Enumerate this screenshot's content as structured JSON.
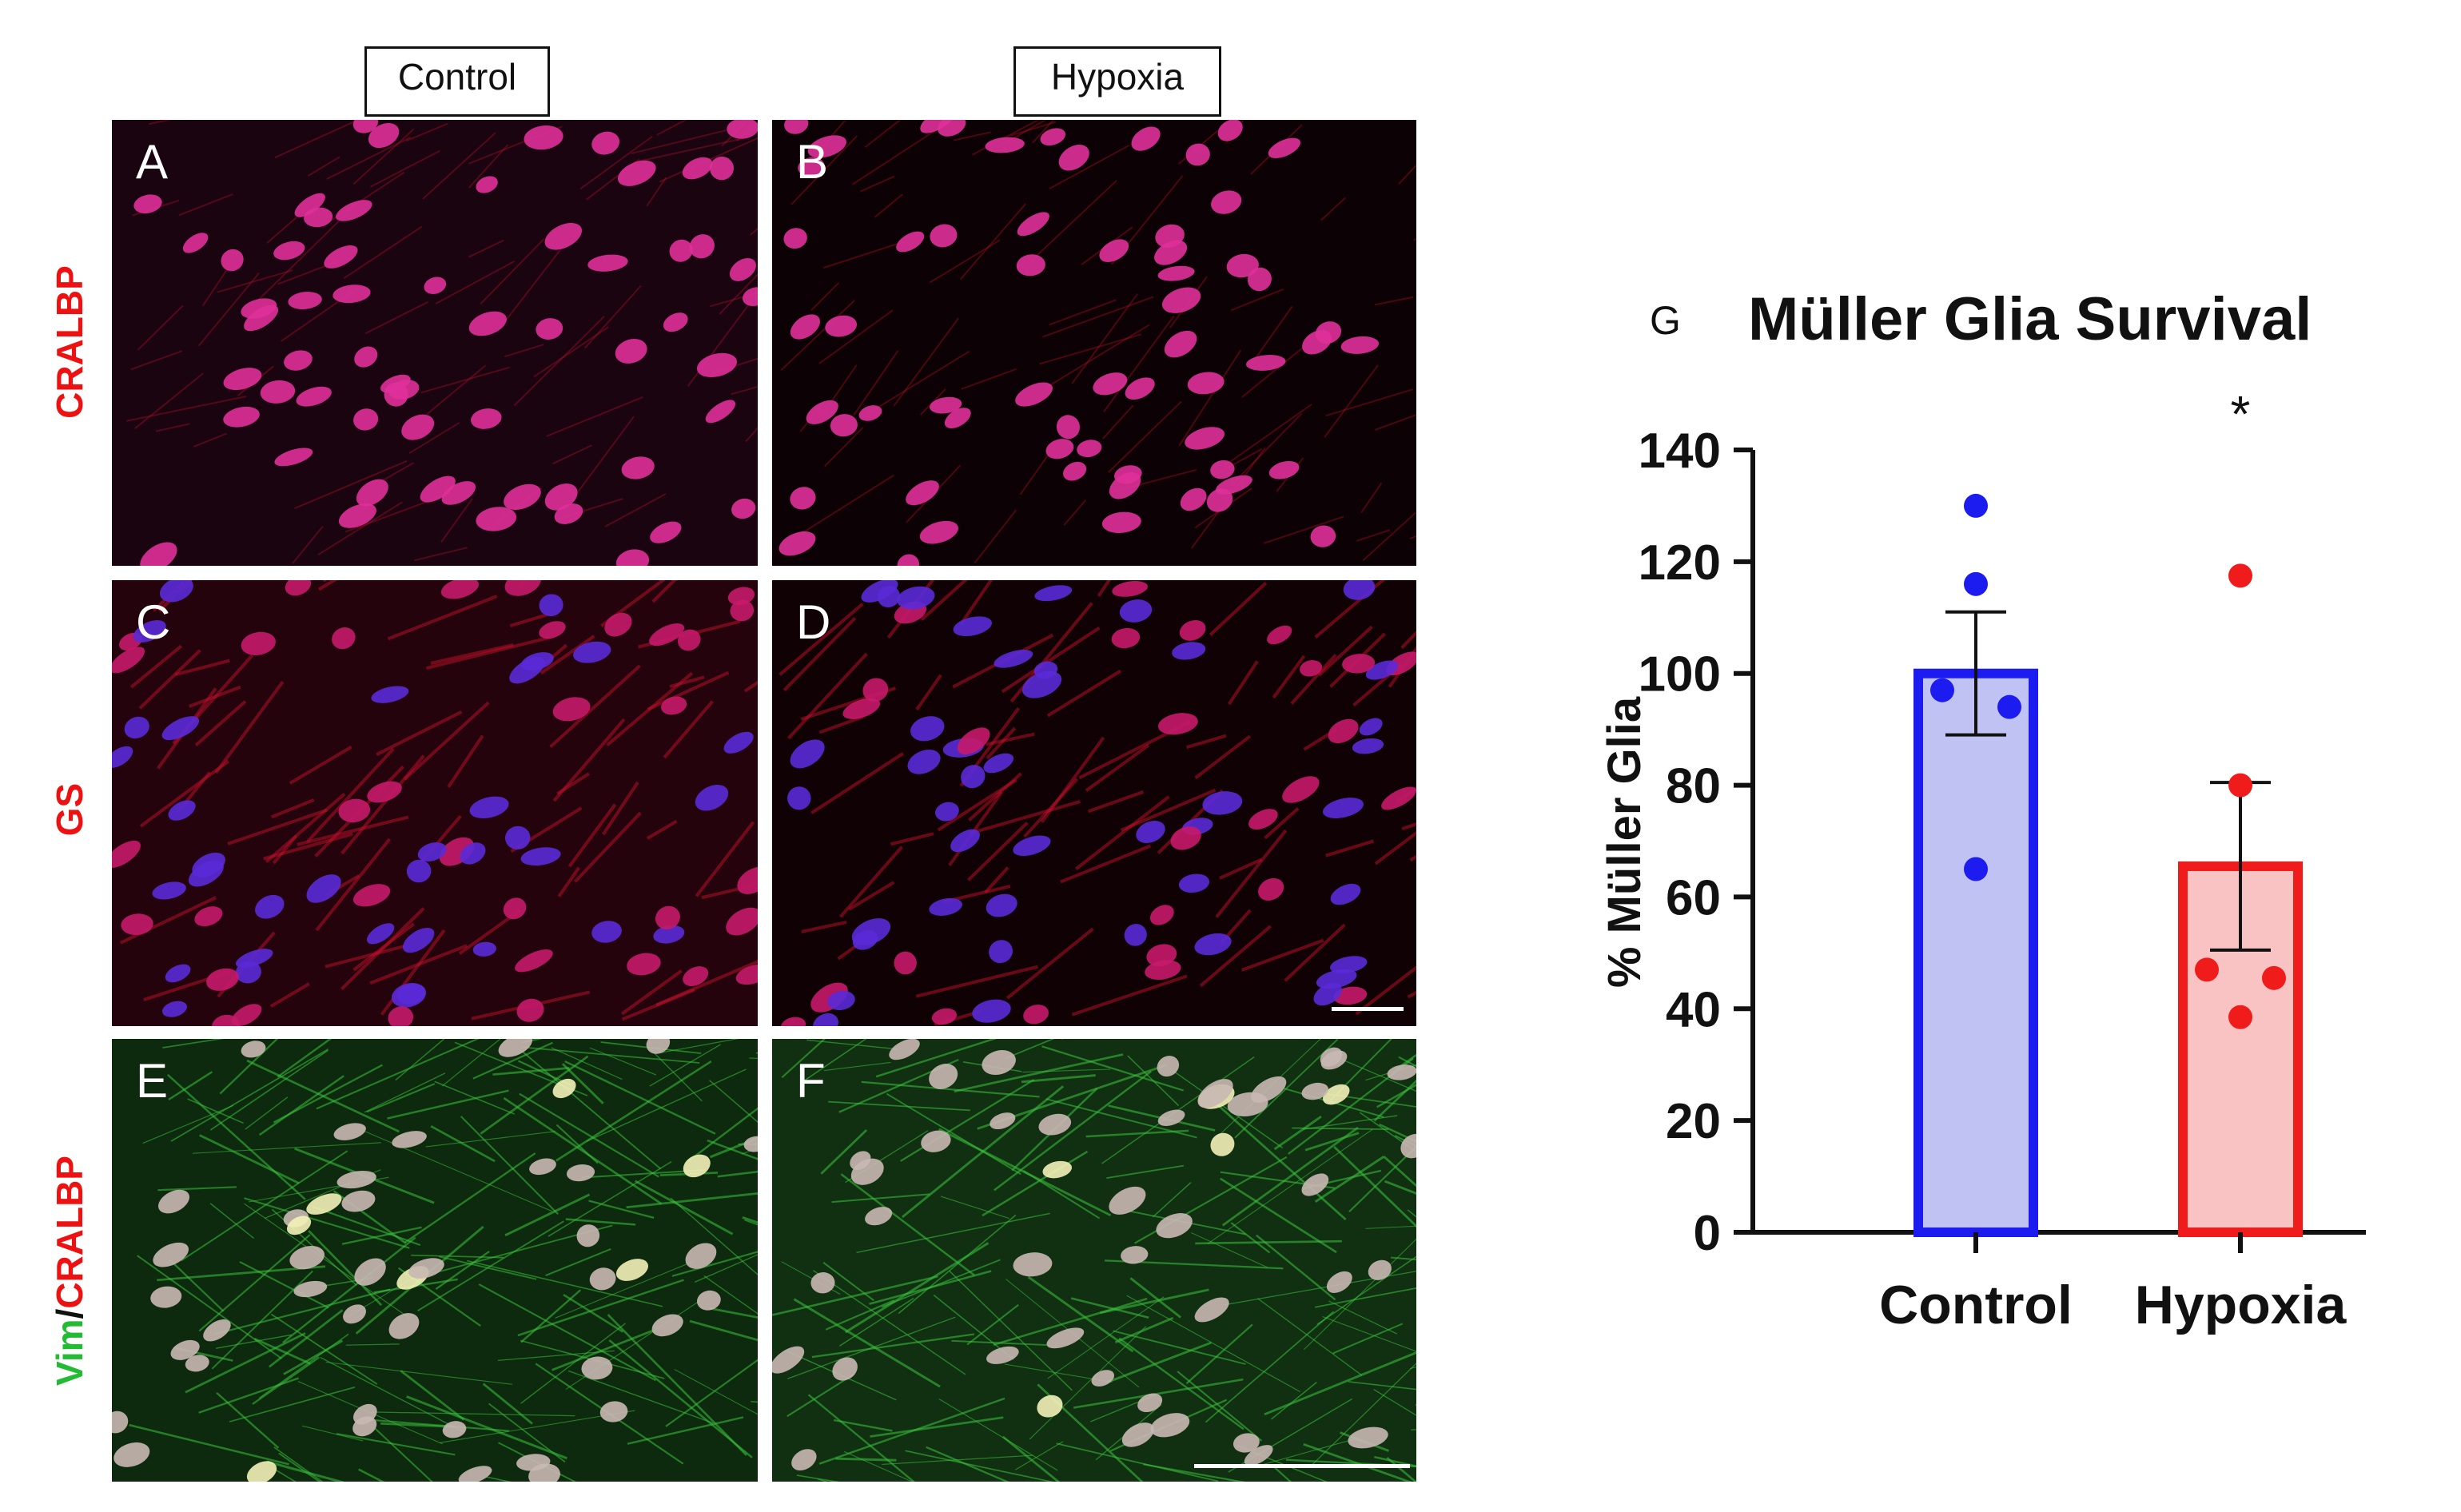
{
  "figure": {
    "column_headers": [
      "Control",
      "Hypoxia"
    ],
    "row_labels": [
      {
        "parts": [
          {
            "text": "CRALBP",
            "color": "#ee1111"
          }
        ]
      },
      {
        "parts": [
          {
            "text": "GS",
            "color": "#ee1111"
          }
        ]
      },
      {
        "parts": [
          {
            "text": "Vim",
            "color": "#22bb33"
          },
          {
            "text": "/",
            "color": "#111111"
          },
          {
            "text": "CRALBP",
            "color": "#ee1111"
          }
        ]
      }
    ],
    "panels": [
      {
        "letter": "A",
        "stain": "cralbp"
      },
      {
        "letter": "B",
        "stain": "cralbp"
      },
      {
        "letter": "C",
        "stain": "gs"
      },
      {
        "letter": "D",
        "stain": "gs"
      },
      {
        "letter": "E",
        "stain": "vim"
      },
      {
        "letter": "F",
        "stain": "vim"
      }
    ],
    "panel_g_letter": "G"
  },
  "chart_data": {
    "type": "bar",
    "title": "Müller Glia Survival",
    "ylabel": "% Müller Glia",
    "xlabel": "",
    "categories": [
      "Control",
      "Hypoxia"
    ],
    "ylim": [
      0,
      140
    ],
    "yticks": [
      0,
      20,
      40,
      60,
      80,
      100,
      120,
      140
    ],
    "means": [
      100,
      65.5
    ],
    "sem": [
      11,
      15
    ],
    "points": [
      [
        130,
        116,
        97,
        94,
        65
      ],
      [
        117.5,
        80,
        47,
        45.5,
        38.5
      ]
    ],
    "bar_fill": [
      "#c0c2f4",
      "#f9c3c3"
    ],
    "bar_stroke": [
      "#1c1cf0",
      "#f01c1c"
    ],
    "point_color": [
      "#1c1cf0",
      "#f01c1c"
    ],
    "significance": [
      "",
      "*"
    ],
    "grid": false
  }
}
